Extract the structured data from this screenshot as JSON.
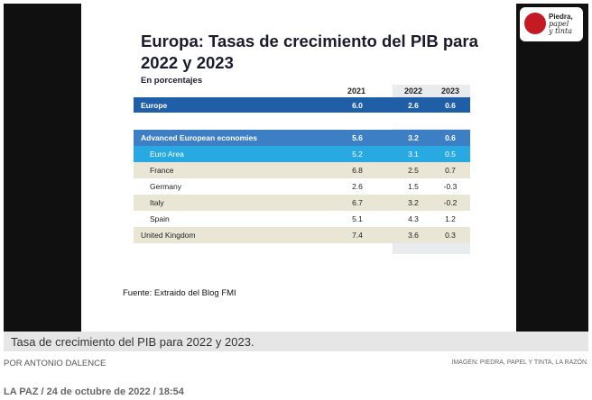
{
  "slide": {
    "title": "Europa: Tasas de crecimiento del PIB para 2022 y 2023",
    "subtitle": "En porcentajes",
    "columns": [
      "2021",
      "2022",
      "2023"
    ],
    "rows": [
      {
        "label": "Europe",
        "values": [
          "6.0",
          "2.6",
          "0.6"
        ]
      },
      {
        "label": "Advanced European economies",
        "values": [
          "5.6",
          "3.2",
          "0.6"
        ]
      },
      {
        "label": "Euro Area",
        "values": [
          "5.2",
          "3.1",
          "0.5"
        ]
      },
      {
        "label": "France",
        "values": [
          "6.8",
          "2.5",
          "0.7"
        ]
      },
      {
        "label": "Germany",
        "values": [
          "2.6",
          "1.5",
          "-0.3"
        ]
      },
      {
        "label": "Italy",
        "values": [
          "6.7",
          "3.2",
          "-0.2"
        ]
      },
      {
        "label": "Spain",
        "values": [
          "5.1",
          "4.3",
          "1.2"
        ]
      },
      {
        "label": "United Kingdom",
        "values": [
          "7.4",
          "3.6",
          "0.3"
        ]
      }
    ],
    "source": "Fuente: Extraido del Blog FMI"
  },
  "logo": {
    "line1": "Piedra,",
    "line2": "papel",
    "line3": "y tinta"
  },
  "caption": "Tasa de crecimiento del PIB para 2022 y 2023.",
  "byline": "POR ANTONIO DALENCE",
  "credit": "IMAGEN: PIEDRA, PAPEL Y TINTA, LA RAZÓN.",
  "dateline": "LA PAZ / 24 de octubre de 2022 / 18:54"
}
